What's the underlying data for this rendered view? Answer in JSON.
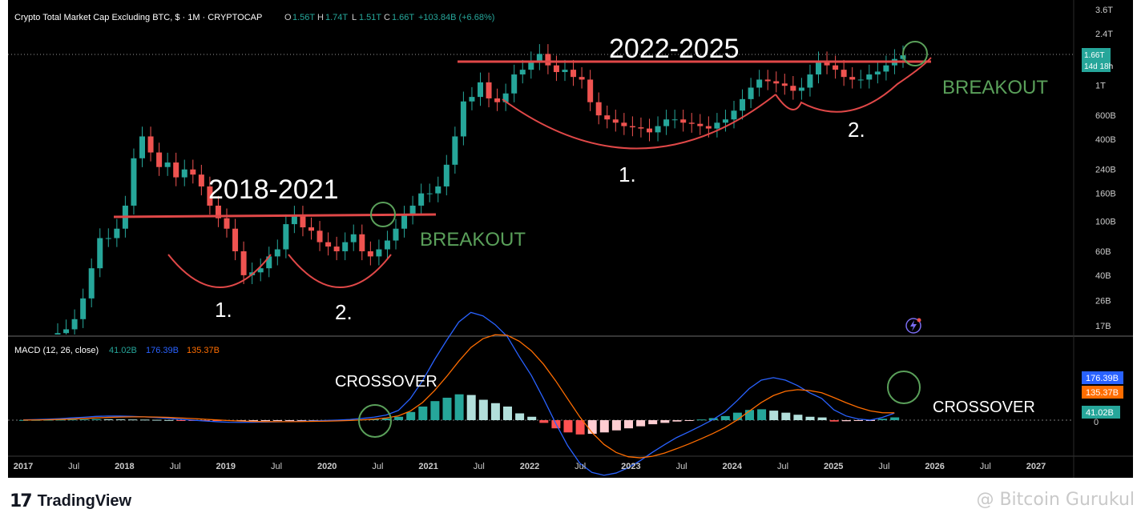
{
  "header": {
    "title": "Crypto Total Market Cap Excluding BTC, $ · 1M · CRYPTOCAP",
    "ohlc": [
      {
        "k": "O",
        "v": "1.56T"
      },
      {
        "k": "H",
        "v": "1.74T"
      },
      {
        "k": "L",
        "v": "1.51T"
      },
      {
        "k": "C",
        "v": "1.66T"
      }
    ],
    "change": "+103.84B (+6.68%)"
  },
  "price_label": {
    "value": "1.66T",
    "countdown": "14d 18h"
  },
  "macd": {
    "title": "MACD (12, 26, close)",
    "hist": "41.02B",
    "macd": "176.39B",
    "signal": "135.37B",
    "zero": "0"
  },
  "annotations": {
    "period_a": "2018-2021",
    "period_b": "2022-2025",
    "breakout": "BREAKOUT",
    "crossover": "CROSSOVER",
    "one": "1.",
    "two": "2."
  },
  "footer": {
    "brand": "TradingView",
    "watermark": "@ Bitcoin Gurukul"
  },
  "colors": {
    "up": "#26a69a",
    "down": "#ef5350",
    "annot": "#e04848",
    "green_text": "#5aa05a",
    "macd_line": "#2962ff",
    "signal_line": "#ff6d00"
  },
  "chart_data": {
    "type": "candlestick",
    "title": "Crypto Total Market Cap Excluding BTC",
    "y_scale": "log",
    "y_ticks": [
      "3.6T",
      "2.4T",
      "1.66T",
      "1T",
      "600B",
      "400B",
      "240B",
      "160B",
      "100B",
      "60B",
      "40B",
      "26B",
      "17B"
    ],
    "x_ticks": [
      "2017",
      "Jul",
      "2018",
      "Jul",
      "2019",
      "Jul",
      "2020",
      "Jul",
      "2021",
      "Jul",
      "2022",
      "Jul",
      "2023",
      "Jul",
      "2024",
      "Jul",
      "2025",
      "Jul",
      "2026",
      "Jul",
      "2027"
    ],
    "monthly_close_billions": [
      15,
      16,
      19,
      27,
      45,
      75,
      75,
      88,
      130,
      290,
      420,
      320,
      250,
      270,
      210,
      240,
      220,
      180,
      130,
      105,
      88,
      60,
      40,
      42,
      45,
      55,
      62,
      95,
      110,
      90,
      85,
      70,
      65,
      60,
      70,
      80,
      60,
      55,
      62,
      72,
      88,
      110,
      130,
      160,
      160,
      180,
      260,
      420,
      760,
      820,
      1050,
      800,
      750,
      870,
      1200,
      1300,
      1500,
      1700,
      1400,
      1250,
      1300,
      1150,
      1100,
      750,
      600,
      560,
      530,
      500,
      490,
      480,
      450,
      500,
      560,
      560,
      530,
      520,
      500,
      480,
      530,
      560,
      650,
      790,
      960,
      1100,
      1070,
      1030,
      990,
      910,
      960,
      1200,
      1500,
      1400,
      1300,
      1150,
      1100,
      1100,
      1200,
      1260,
      1400,
      1560,
      1660
    ],
    "macd_hist_billions": [
      2,
      3,
      5,
      7,
      10,
      12,
      15,
      14,
      12,
      10,
      8,
      5,
      2,
      -2,
      -4,
      -6,
      -8,
      -9,
      -7,
      -6,
      -5,
      -4,
      -3,
      -2,
      -1,
      1,
      2,
      5,
      10,
      15,
      25,
      50,
      120,
      200,
      280,
      330,
      380,
      370,
      300,
      250,
      200,
      100,
      50,
      -40,
      -120,
      -180,
      -210,
      -200,
      -180,
      -150,
      -120,
      -90,
      -60,
      -40,
      -20,
      -10,
      10,
      30,
      60,
      110,
      150,
      160,
      140,
      110,
      80,
      50,
      40,
      -20,
      -15,
      -10,
      -5,
      20,
      41
    ],
    "macd_last": {
      "hist": "41.02B",
      "macd": "176.39B",
      "signal": "135.37B"
    }
  }
}
